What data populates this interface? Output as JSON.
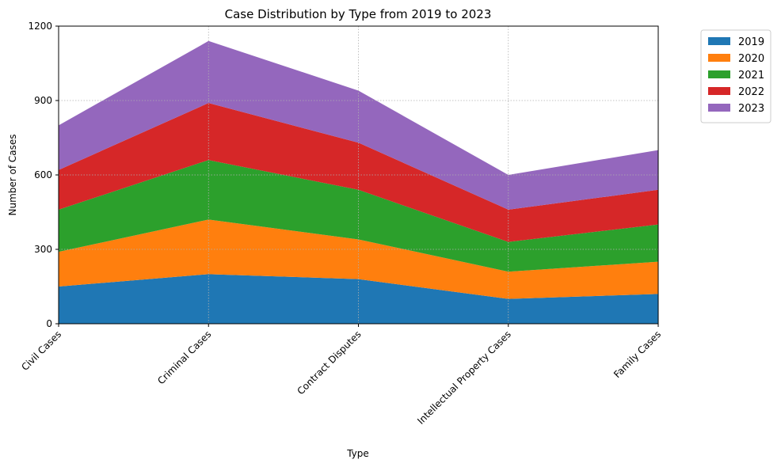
{
  "chart_data": {
    "type": "area",
    "stacked": true,
    "title": "Case Distribution by Type from 2019 to 2023",
    "xlabel": "Type",
    "ylabel": "Number of Cases",
    "categories": [
      "Civil Cases",
      "Criminal Cases",
      "Contract Disputes",
      "Intellectual Property Cases",
      "Family Cases"
    ],
    "ylim": [
      0,
      1200
    ],
    "yticks": [
      "0",
      "300",
      "600",
      "900",
      "1200"
    ],
    "grid": true,
    "legend_position": "outside-top-right",
    "series": [
      {
        "name": "2019",
        "color": "#1f77b4",
        "values": [
          150,
          200,
          180,
          100,
          120
        ]
      },
      {
        "name": "2020",
        "color": "#ff7f0e",
        "values": [
          140,
          220,
          160,
          110,
          130
        ]
      },
      {
        "name": "2021",
        "color": "#2ca02c",
        "values": [
          170,
          240,
          200,
          120,
          150
        ]
      },
      {
        "name": "2022",
        "color": "#d62728",
        "values": [
          160,
          230,
          190,
          130,
          140
        ]
      },
      {
        "name": "2023",
        "color": "#9467bd",
        "values": [
          180,
          250,
          210,
          140,
          160
        ]
      }
    ]
  }
}
